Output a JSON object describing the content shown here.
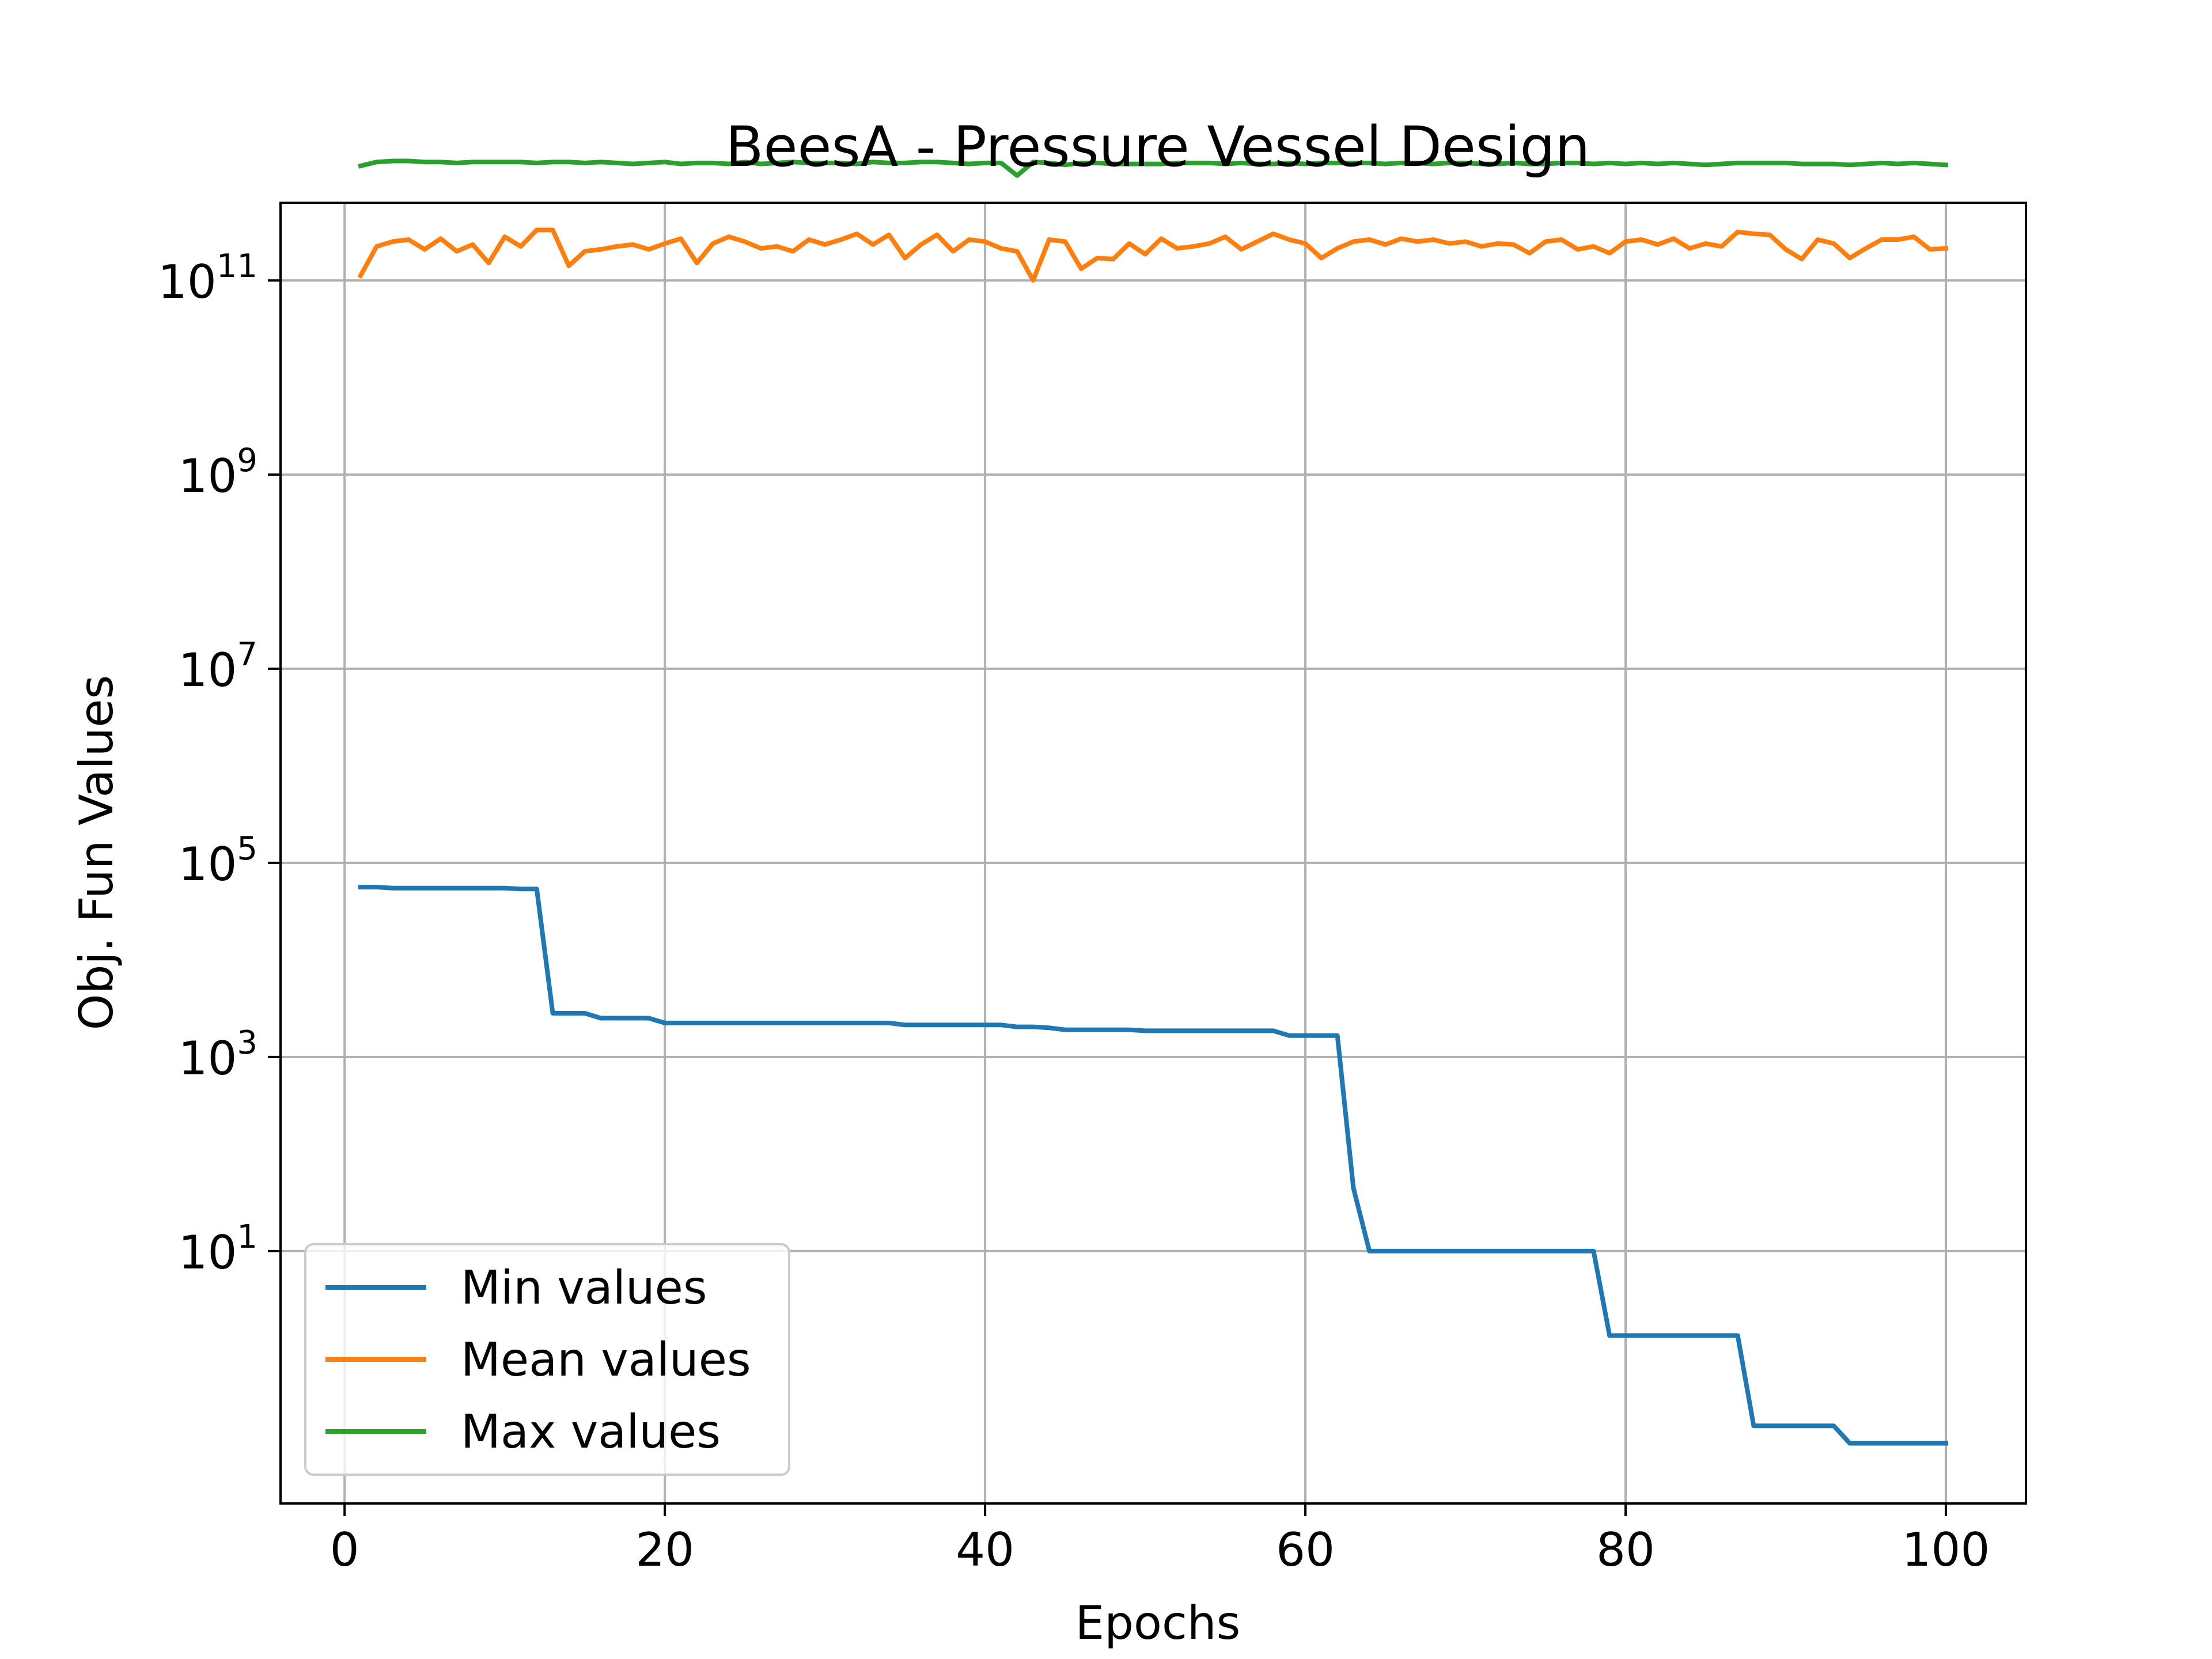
{
  "chart_data": {
    "type": "line",
    "title": "BeesA - Pressure Vessel Design",
    "xlabel": "Epochs",
    "ylabel": "Obj. Fun Values",
    "xlim": [
      -4,
      105
    ],
    "ylim_log10": [
      -1.6,
      11.8
    ],
    "yscale": "log",
    "grid": true,
    "legend_position": "lower-left",
    "x_ticks": [
      0,
      20,
      40,
      60,
      80,
      100
    ],
    "y_tick_exponents": [
      1,
      3,
      5,
      7,
      9,
      11
    ],
    "y_tick_base": "10",
    "x": [
      1,
      2,
      3,
      4,
      5,
      6,
      7,
      8,
      9,
      10,
      11,
      12,
      13,
      14,
      15,
      16,
      17,
      18,
      19,
      20,
      21,
      22,
      23,
      24,
      25,
      26,
      27,
      28,
      29,
      30,
      31,
      32,
      33,
      34,
      35,
      36,
      37,
      38,
      39,
      40,
      41,
      42,
      43,
      44,
      45,
      46,
      47,
      48,
      49,
      50,
      51,
      52,
      53,
      54,
      55,
      56,
      57,
      58,
      59,
      60,
      61,
      62,
      63,
      64,
      65,
      66,
      67,
      68,
      69,
      70,
      71,
      72,
      73,
      74,
      75,
      76,
      77,
      78,
      79,
      80,
      81,
      82,
      83,
      84,
      85,
      86,
      87,
      88,
      89,
      90,
      91,
      92,
      93,
      94,
      95,
      96,
      97,
      98,
      99,
      100
    ],
    "series": [
      {
        "name": "Min values",
        "color": "#1f77b4",
        "log10_values": [
          4.75,
          4.75,
          4.74,
          4.74,
          4.74,
          4.74,
          4.74,
          4.74,
          4.74,
          4.74,
          4.73,
          4.73,
          3.45,
          3.45,
          3.45,
          3.4,
          3.4,
          3.4,
          3.4,
          3.35,
          3.35,
          3.35,
          3.35,
          3.35,
          3.35,
          3.35,
          3.35,
          3.35,
          3.35,
          3.35,
          3.35,
          3.35,
          3.35,
          3.35,
          3.33,
          3.33,
          3.33,
          3.33,
          3.33,
          3.33,
          3.33,
          3.31,
          3.31,
          3.3,
          3.28,
          3.28,
          3.28,
          3.28,
          3.28,
          3.27,
          3.27,
          3.27,
          3.27,
          3.27,
          3.27,
          3.27,
          3.27,
          3.27,
          3.22,
          3.22,
          3.22,
          3.22,
          1.65,
          1.0,
          1.0,
          1.0,
          1.0,
          1.0,
          1.0,
          1.0,
          1.0,
          1.0,
          1.0,
          1.0,
          1.0,
          1.0,
          1.0,
          1.0,
          0.13,
          0.13,
          0.13,
          0.13,
          0.13,
          0.13,
          0.13,
          0.13,
          0.13,
          -0.8,
          -0.8,
          -0.8,
          -0.8,
          -0.8,
          -0.8,
          -0.98,
          -0.98,
          -0.98,
          -0.98,
          -0.98,
          -0.98,
          -0.98
        ]
      },
      {
        "name": "Mean values",
        "color": "#ff7f0e",
        "log10_values": [
          11.05,
          11.35,
          11.4,
          11.42,
          11.32,
          11.43,
          11.3,
          11.37,
          11.18,
          11.45,
          11.35,
          11.52,
          11.52,
          11.15,
          11.3,
          11.32,
          11.35,
          11.37,
          11.32,
          11.38,
          11.43,
          11.18,
          11.38,
          11.45,
          11.4,
          11.33,
          11.35,
          11.3,
          11.42,
          11.37,
          11.42,
          11.48,
          11.37,
          11.47,
          11.23,
          11.37,
          11.47,
          11.3,
          11.42,
          11.4,
          11.33,
          11.3,
          11.0,
          11.42,
          11.4,
          11.12,
          11.23,
          11.22,
          11.38,
          11.27,
          11.43,
          11.33,
          11.35,
          11.38,
          11.45,
          11.32,
          11.4,
          11.48,
          11.42,
          11.38,
          11.23,
          11.33,
          11.4,
          11.42,
          11.37,
          11.43,
          11.4,
          11.42,
          11.38,
          11.4,
          11.35,
          11.38,
          11.37,
          11.28,
          11.4,
          11.42,
          11.32,
          11.35,
          11.28,
          11.4,
          11.42,
          11.37,
          11.43,
          11.33,
          11.38,
          11.35,
          11.5,
          11.48,
          11.47,
          11.32,
          11.22,
          11.42,
          11.38,
          11.23,
          11.33,
          11.42,
          11.42,
          11.45,
          11.32,
          11.33
        ]
      },
      {
        "name": "Max values",
        "color": "#2ca02c",
        "log10_values": [
          12.18,
          12.22,
          12.23,
          12.23,
          12.22,
          12.22,
          12.21,
          12.22,
          12.22,
          12.22,
          12.22,
          12.21,
          12.22,
          12.22,
          12.21,
          12.22,
          12.21,
          12.2,
          12.21,
          12.22,
          12.2,
          12.21,
          12.21,
          12.2,
          12.22,
          12.2,
          12.21,
          12.22,
          12.21,
          12.21,
          12.21,
          12.2,
          12.22,
          12.21,
          12.21,
          12.22,
          12.22,
          12.21,
          12.2,
          12.21,
          12.21,
          12.08,
          12.22,
          12.21,
          12.19,
          12.21,
          12.21,
          12.2,
          12.2,
          12.2,
          12.2,
          12.21,
          12.21,
          12.21,
          12.2,
          12.21,
          12.2,
          12.2,
          12.21,
          12.2,
          12.21,
          12.21,
          12.21,
          12.21,
          12.2,
          12.21,
          12.21,
          12.2,
          12.21,
          12.21,
          12.2,
          12.2,
          12.21,
          12.2,
          12.2,
          12.21,
          12.21,
          12.2,
          12.21,
          12.2,
          12.21,
          12.2,
          12.21,
          12.2,
          12.19,
          12.2,
          12.21,
          12.21,
          12.21,
          12.21,
          12.2,
          12.2,
          12.2,
          12.19,
          12.2,
          12.21,
          12.2,
          12.21,
          12.2,
          12.19
        ]
      }
    ]
  }
}
